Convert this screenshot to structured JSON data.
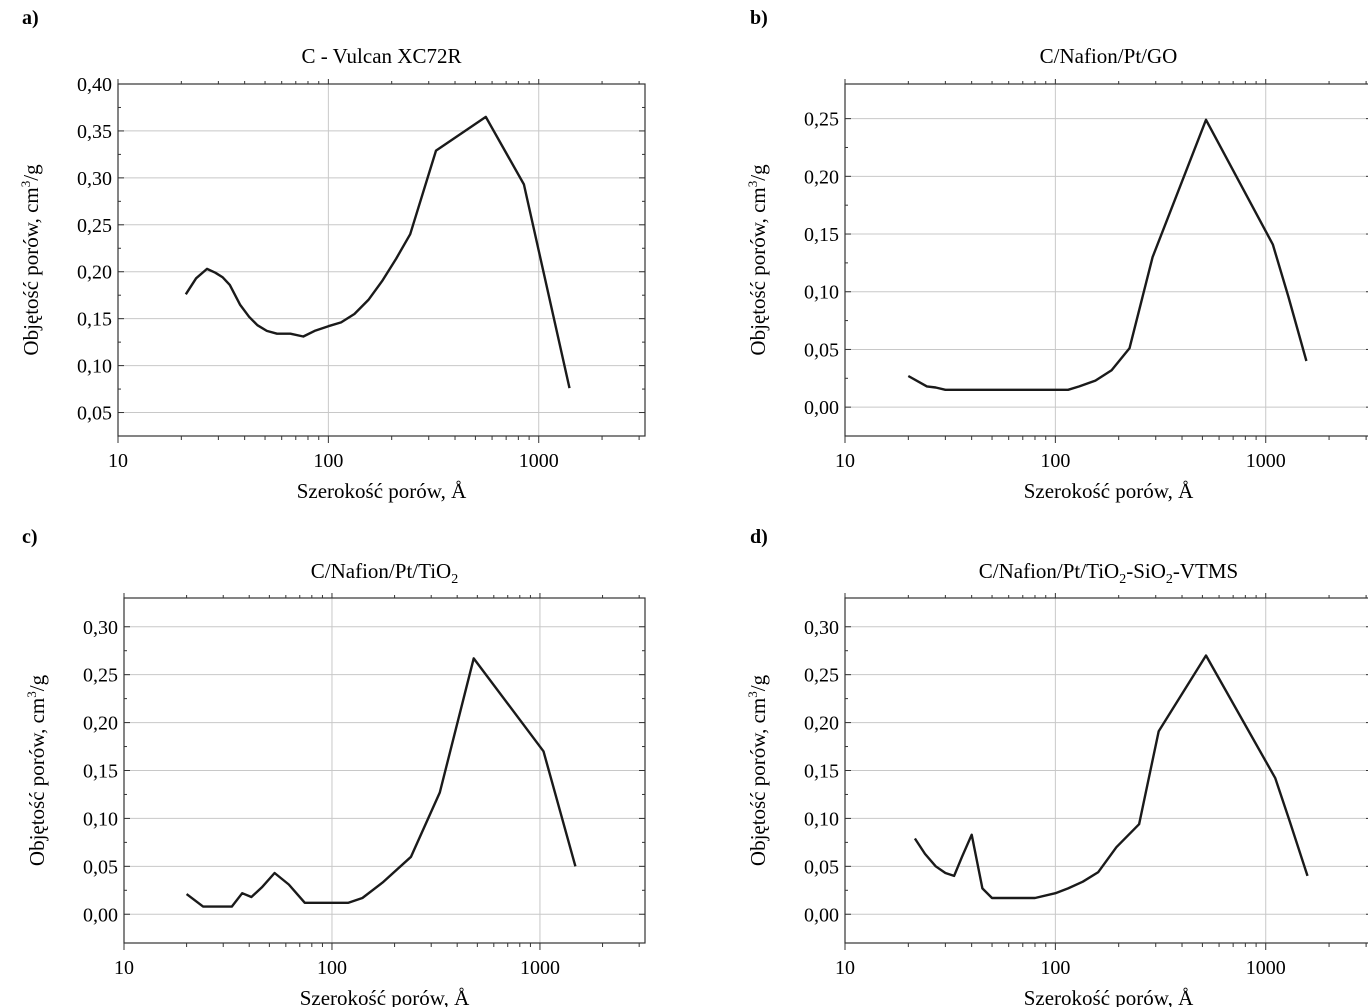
{
  "chart_data": [
    {
      "type": "line",
      "panel": "a)",
      "title": "C - Vulcan  XC72R",
      "title_sub": "",
      "title_tail": "",
      "xlabel": "Szerokość porów, Å",
      "ylabel": "Objętość porów, cm",
      "ylabel_sup": "3",
      "ylabel_tail": "/g",
      "x_scale": "log",
      "xlim": [
        10,
        3200
      ],
      "ylim": [
        0.025,
        0.4
      ],
      "x_ticks": [
        "10",
        "100",
        "1000"
      ],
      "y_ticks": [
        "0,05",
        "0,10",
        "0,15",
        "0,20",
        "0,25",
        "0,30",
        "0,35",
        "0,40"
      ],
      "grid": true,
      "x": [
        21,
        23.5,
        26.5,
        29,
        31.5,
        34,
        38,
        42,
        46,
        51,
        57,
        66,
        76,
        86,
        100,
        115,
        133,
        155,
        180,
        210,
        245,
        325,
        560,
        850,
        1400
      ],
      "y": [
        0.176,
        0.193,
        0.203,
        0.199,
        0.194,
        0.186,
        0.165,
        0.152,
        0.143,
        0.137,
        0.134,
        0.134,
        0.131,
        0.137,
        0.142,
        0.146,
        0.155,
        0.17,
        0.19,
        0.214,
        0.24,
        0.329,
        0.365,
        0.293,
        0.076
      ]
    },
    {
      "type": "line",
      "panel": "b)",
      "title": "C/Nafion/Pt/GO",
      "title_sub": "",
      "title_tail": "",
      "xlabel": "Szerokość porów, Å",
      "ylabel": "Objętość porów, cm",
      "ylabel_sup": "3",
      "ylabel_tail": "/g",
      "x_scale": "log",
      "xlim": [
        10,
        3200
      ],
      "ylim": [
        -0.025,
        0.28
      ],
      "x_ticks": [
        "10",
        "100",
        "1000"
      ],
      "y_ticks": [
        "0,00",
        "0,05",
        "0,10",
        "0,15",
        "0,20",
        "0,25"
      ],
      "grid": true,
      "x": [
        20,
        24.5,
        27,
        30,
        40,
        60,
        80,
        100,
        115,
        130,
        155,
        185,
        225,
        290,
        520,
        1080,
        1280,
        1560
      ],
      "y": [
        0.027,
        0.018,
        0.017,
        0.015,
        0.015,
        0.015,
        0.015,
        0.015,
        0.015,
        0.018,
        0.023,
        0.032,
        0.051,
        0.13,
        0.249,
        0.141,
        0.096,
        0.04
      ]
    },
    {
      "type": "line",
      "panel": "c)",
      "title": "C/Nafion/Pt/TiO",
      "title_sub": "2",
      "title_tail": "",
      "xlabel": "Szerokość porów, Å",
      "ylabel": "Objętość porów, cm",
      "ylabel_sup": "3",
      "ylabel_tail": "/g",
      "x_scale": "log",
      "xlim": [
        10,
        3200
      ],
      "ylim": [
        -0.03,
        0.33
      ],
      "x_ticks": [
        "10",
        "100",
        "1000"
      ],
      "y_ticks": [
        "0,00",
        "0,05",
        "0,10",
        "0,15",
        "0,20",
        "0,25",
        "0,30"
      ],
      "grid": true,
      "x": [
        20,
        24,
        28,
        33,
        37,
        41,
        46,
        53,
        62,
        74,
        88,
        103,
        120,
        140,
        175,
        240,
        330,
        480,
        1040,
        1480
      ],
      "y": [
        0.021,
        0.008,
        0.008,
        0.008,
        0.022,
        0.018,
        0.028,
        0.043,
        0.031,
        0.012,
        0.012,
        0.012,
        0.012,
        0.017,
        0.033,
        0.06,
        0.127,
        0.267,
        0.17,
        0.05
      ]
    },
    {
      "type": "line",
      "panel": "d)",
      "title": "C/Nafion/Pt/TiO",
      "title_sub": "2",
      "title_tail": "-SiO",
      "title_sub2": "2",
      "title_tail2": "-VTMS",
      "xlabel": "Szerokość porów, Å",
      "ylabel": "Objętość porów, cm",
      "ylabel_sup": "3",
      "ylabel_tail": "/g",
      "x_scale": "log",
      "xlim": [
        10,
        3200
      ],
      "ylim": [
        -0.03,
        0.33
      ],
      "x_ticks": [
        "10",
        "100",
        "1000"
      ],
      "y_ticks": [
        "0,00",
        "0,05",
        "0,10",
        "0,15",
        "0,20",
        "0,25",
        "0,30"
      ],
      "grid": true,
      "x": [
        21.5,
        24,
        27,
        30,
        33,
        36,
        40,
        45,
        50,
        60,
        80,
        100,
        115,
        135,
        160,
        195,
        250,
        310,
        520,
        1110,
        1300,
        1580
      ],
      "y": [
        0.079,
        0.063,
        0.05,
        0.043,
        0.04,
        0.06,
        0.083,
        0.027,
        0.017,
        0.017,
        0.017,
        0.022,
        0.027,
        0.034,
        0.044,
        0.07,
        0.094,
        0.191,
        0.27,
        0.142,
        0.097,
        0.04
      ]
    }
  ]
}
